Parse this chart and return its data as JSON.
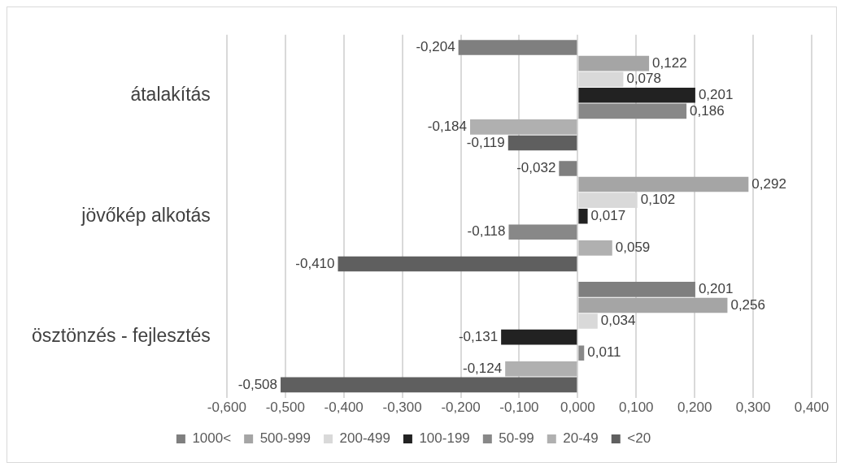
{
  "chart_data": {
    "type": "bar",
    "orientation": "horizontal",
    "categories": [
      "átalakítás",
      "jövőkép alkotás",
      "ösztönzés - fejlesztés"
    ],
    "xlim": [
      -0.6,
      0.4
    ],
    "xticks": [
      {
        "value": -0.6,
        "label": "-0,600"
      },
      {
        "value": -0.5,
        "label": "-0,500"
      },
      {
        "value": -0.4,
        "label": "-0,400"
      },
      {
        "value": -0.3,
        "label": "-0,300"
      },
      {
        "value": -0.2,
        "label": "-0,200"
      },
      {
        "value": -0.1,
        "label": "-0,100"
      },
      {
        "value": 0,
        "label": "0,000"
      },
      {
        "value": 0.1,
        "label": "0,100"
      },
      {
        "value": 0.2,
        "label": "0,200"
      },
      {
        "value": 0.3,
        "label": "0,300"
      },
      {
        "value": 0.4,
        "label": "0,400"
      }
    ],
    "grid": "x",
    "legend": "bottom",
    "series": [
      {
        "name": "1000<",
        "color": "#7f7f7f",
        "values": [
          -0.204,
          -0.032,
          0.201
        ],
        "value_labels": [
          "-0,204",
          "-0,032",
          "0,201"
        ]
      },
      {
        "name": "500-999",
        "color": "#a5a5a5",
        "values": [
          0.122,
          0.292,
          0.256
        ],
        "value_labels": [
          "0,122",
          "0,292",
          "0,256"
        ]
      },
      {
        "name": "200-499",
        "color": "#d9d9d9",
        "values": [
          0.078,
          0.102,
          0.034
        ],
        "value_labels": [
          "0,078",
          "0,102",
          "0,034"
        ]
      },
      {
        "name": "100-199",
        "color": "#222222",
        "values": [
          0.201,
          0.017,
          -0.131
        ],
        "value_labels": [
          "0,201",
          "0,017",
          "-0,131"
        ]
      },
      {
        "name": "50-99",
        "color": "#888888",
        "values": [
          0.186,
          -0.118,
          0.011
        ],
        "value_labels": [
          "0,186",
          "-0,118",
          "0,011"
        ]
      },
      {
        "name": "20-49",
        "color": "#b0b0b0",
        "values": [
          -0.184,
          0.059,
          -0.124
        ],
        "value_labels": [
          "-0,184",
          "0,059",
          "-0,124"
        ]
      },
      {
        "name": "<20",
        "color": "#5f5f5f",
        "values": [
          -0.119,
          -0.41,
          -0.508
        ],
        "value_labels": [
          "-0,119",
          "-0,410",
          "-0,508"
        ]
      }
    ]
  }
}
